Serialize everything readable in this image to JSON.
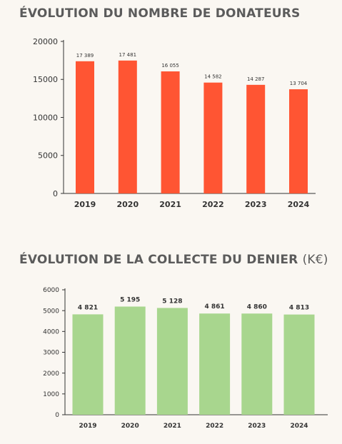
{
  "chart_data": [
    {
      "type": "bar",
      "title": "ÉVOLUTION DU NOMBRE DE DONATEURS",
      "title_unit": "",
      "categories": [
        "2019",
        "2020",
        "2021",
        "2022",
        "2023",
        "2024"
      ],
      "values": [
        17389,
        17481,
        16055,
        14582,
        14287,
        13704
      ],
      "value_labels": [
        "17 389",
        "17 481",
        "16 055",
        "14 582",
        "14 287",
        "13 704"
      ],
      "yticks": [
        0,
        5000,
        10000,
        15000,
        20000
      ],
      "ylim": [
        0,
        20000
      ],
      "color": "#ff5533",
      "grid": false
    },
    {
      "type": "bar",
      "title": "ÉVOLUTION DE LA COLLECTE DU DENIER",
      "title_unit": "(K€)",
      "categories": [
        "2019",
        "2020",
        "2021",
        "2022",
        "2023",
        "2024"
      ],
      "values": [
        4821,
        5195,
        5128,
        4861,
        4860,
        4813
      ],
      "value_labels": [
        "4 821",
        "5 195",
        "5 128",
        "4 861",
        "4 860",
        "4 813"
      ],
      "yticks": [
        0,
        1000,
        2000,
        3000,
        4000,
        5000,
        6000
      ],
      "ylim": [
        0,
        6000
      ],
      "color": "#a8d68e",
      "grid": false
    }
  ]
}
